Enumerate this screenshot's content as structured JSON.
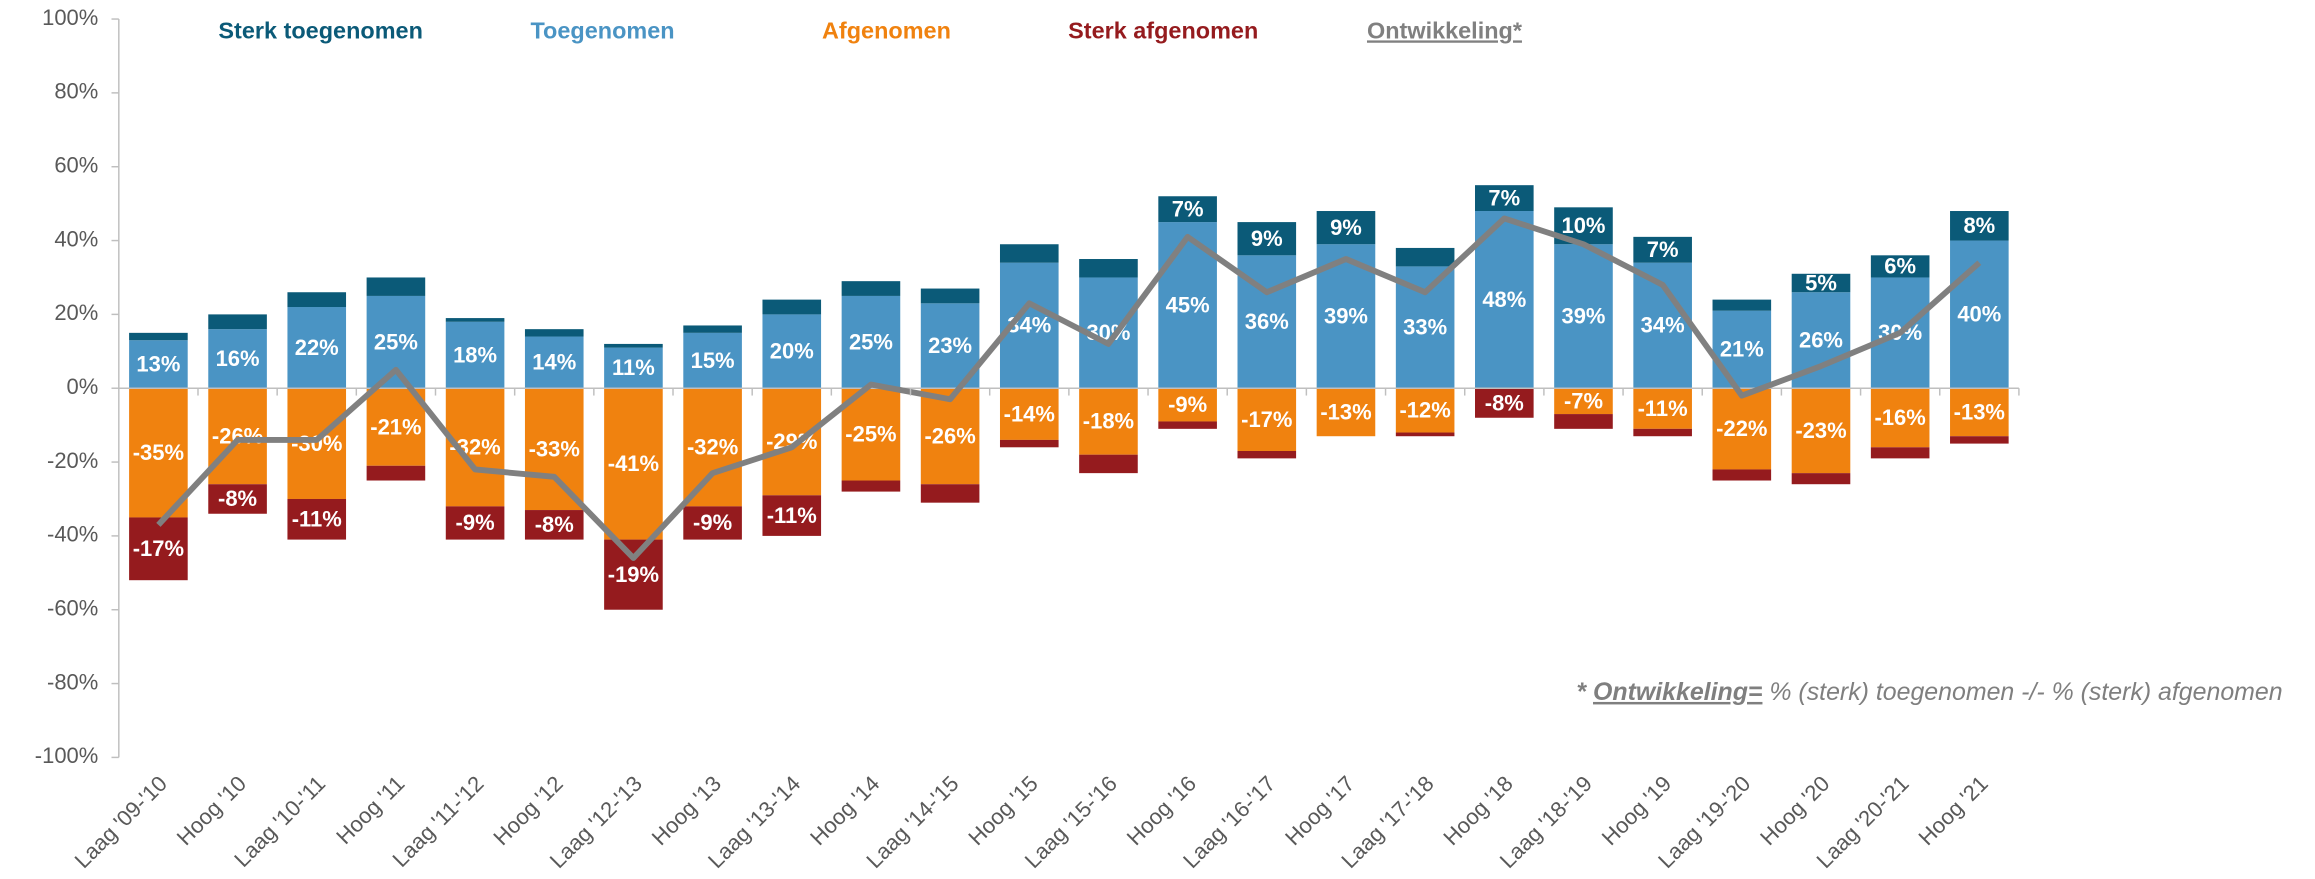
{
  "chart_data": {
    "type": "bar",
    "categories": [
      "Laag '09-'10",
      "Hoog '10",
      "Laag '10-'11",
      "Hoog '11",
      "Laag '11-'12",
      "Hoog '12",
      "Laag '12-'13",
      "Hoog '13",
      "Laag '13-'14",
      "Hoog '14",
      "Laag '14-'15",
      "Hoog '15",
      "Laag '15-'16",
      "Hoog '16",
      "Laag '16-'17",
      "Hoog '17",
      "Laag '17-'18",
      "Hoog '18",
      "Laag '18-'19",
      "Hoog '19",
      "Laag '19-'20",
      "Hoog '20",
      "Laag '20-'21",
      "Hoog '21"
    ],
    "series": [
      {
        "name": "Sterk toegenomen",
        "color": "#0b5a78",
        "values": [
          2,
          4,
          4,
          5,
          1,
          2,
          1,
          2,
          4,
          4,
          4,
          5,
          5,
          7,
          9,
          9,
          5,
          7,
          10,
          7,
          3,
          5,
          6,
          8
        ],
        "value_labels": [
          null,
          null,
          null,
          null,
          null,
          null,
          null,
          null,
          null,
          null,
          null,
          null,
          null,
          "7%",
          "9%",
          "9%",
          null,
          "7%",
          "10%",
          "7%",
          null,
          "5%",
          "6%",
          "8%"
        ]
      },
      {
        "name": "Toegenomen",
        "color": "#4a94c4",
        "values": [
          13,
          16,
          22,
          25,
          18,
          14,
          11,
          15,
          20,
          25,
          23,
          34,
          30,
          45,
          36,
          39,
          33,
          48,
          39,
          34,
          21,
          26,
          30,
          40
        ],
        "value_labels": [
          "13%",
          "16%",
          "22%",
          "25%",
          "18%",
          "14%",
          "11%",
          "15%",
          "20%",
          "25%",
          "23%",
          "34%",
          "30%",
          "45%",
          "36%",
          "39%",
          "33%",
          "48%",
          "39%",
          "34%",
          "21%",
          "26%",
          "30%",
          "40%"
        ]
      },
      {
        "name": "Afgenomen",
        "color": "#f0820f",
        "values": [
          -35,
          -26,
          -30,
          -21,
          -32,
          -33,
          -41,
          -32,
          -29,
          -25,
          -26,
          -14,
          -18,
          -9,
          -17,
          -13,
          -12,
          0,
          -7,
          -11,
          -22,
          -23,
          -16,
          -13
        ],
        "value_labels": [
          "-35%",
          "-26%",
          "-30%",
          "-21%",
          "-32%",
          "-33%",
          "-41%",
          "-32%",
          "-29%",
          "-25%",
          "-26%",
          "-14%",
          "-18%",
          "-9%",
          "-17%",
          "-13%",
          "-12%",
          null,
          "-7%",
          "-11%",
          "-22%",
          "-23%",
          "-16%",
          "-13%"
        ]
      },
      {
        "name": "Sterk afgenomen",
        "color": "#951b1e",
        "values": [
          -17,
          -8,
          -11,
          -4,
          -9,
          -8,
          -19,
          -9,
          -11,
          -3,
          -5,
          -2,
          -5,
          -2,
          -2,
          0,
          -1,
          -8,
          -4,
          -2,
          -3,
          -3,
          -3,
          -2
        ],
        "value_labels": [
          "-17%",
          "-8%",
          "-11%",
          null,
          "-9%",
          "-8%",
          "-19%",
          "-9%",
          "-11%",
          null,
          null,
          null,
          null,
          null,
          null,
          null,
          null,
          "-8%",
          null,
          null,
          null,
          null,
          null,
          null
        ]
      },
      {
        "name": "Ontwikkeling*",
        "color": "#808080",
        "type": "line",
        "values": [
          -37,
          -14,
          -14,
          5,
          -22,
          -24,
          -46,
          -23,
          -16,
          1,
          -3,
          23,
          12,
          41,
          26,
          35,
          26,
          46,
          39,
          28,
          -2,
          6,
          15,
          34
        ]
      }
    ],
    "ylim": [
      -100,
      100
    ],
    "yticks": [
      {
        "value": -100,
        "label": "-100%"
      },
      {
        "value": -80,
        "label": "-80%"
      },
      {
        "value": -60,
        "label": "-60%"
      },
      {
        "value": -40,
        "label": "-40%"
      },
      {
        "value": -20,
        "label": "-20%"
      },
      {
        "value": 0,
        "label": "0%"
      },
      {
        "value": 20,
        "label": "20%"
      },
      {
        "value": 40,
        "label": "40%"
      },
      {
        "value": 60,
        "label": "60%"
      },
      {
        "value": 80,
        "label": "80%"
      },
      {
        "value": 100,
        "label": "100%"
      }
    ],
    "footnote": {
      "marker": "*",
      "term": "Ontwikkeling=",
      "text": "% (sterk) toegenomen -/- % (sterk) afgenomen"
    }
  }
}
